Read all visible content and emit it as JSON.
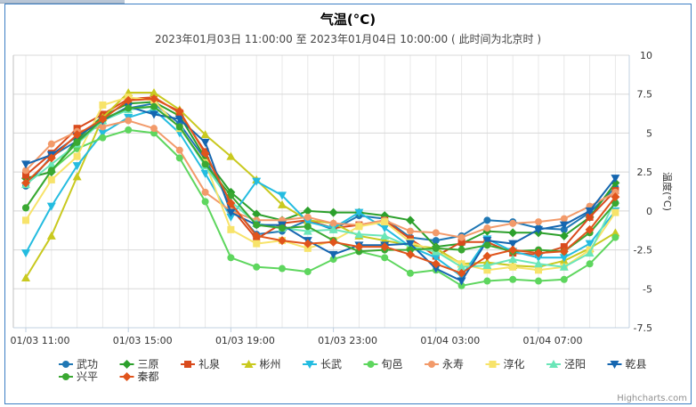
{
  "chart_data": {
    "type": "line",
    "title": "气温(°C)",
    "subtitle": "2023年01月03日 11:00:00 至 2023年01月04日 10:00:00 ( 此时间为北京时 )",
    "ylabel": "温度(°C)",
    "y_axis_side": "right",
    "ylim": [
      -7.5,
      10
    ],
    "yticks": [
      -7.5,
      -5,
      -2.5,
      0,
      2.5,
      5,
      7.5,
      10
    ],
    "grid": true,
    "legend_position": "bottom",
    "x": [
      "01/03 11:00",
      "01/03 12:00",
      "01/03 13:00",
      "01/03 14:00",
      "01/03 15:00",
      "01/03 16:00",
      "01/03 17:00",
      "01/03 18:00",
      "01/03 19:00",
      "01/03 20:00",
      "01/03 21:00",
      "01/03 22:00",
      "01/03 23:00",
      "01/04 00:00",
      "01/04 01:00",
      "01/04 02:00",
      "01/04 03:00",
      "01/04 04:00",
      "01/04 05:00",
      "01/04 06:00",
      "01/04 07:00",
      "01/04 08:00",
      "01/04 09:00",
      "01/04 10:00"
    ],
    "x_tick_labels": [
      "01/03 11:00",
      "01/03 15:00",
      "01/03 19:00",
      "01/03 23:00",
      "01/04 03:00",
      "01/04 07:00"
    ],
    "series": [
      {
        "name": "武功",
        "color": "#1f77b4",
        "marker": "circle",
        "values": [
          1.6,
          3.5,
          4.5,
          5.8,
          6.6,
          6.9,
          5.6,
          3.3,
          0.4,
          -1.5,
          -1.3,
          -0.6,
          -1.2,
          -0.3,
          -0.5,
          -1.7,
          -1.9,
          -1.6,
          -0.6,
          -0.7,
          -1.1,
          -1.2,
          -0.1,
          1.5
        ]
      },
      {
        "name": "三原",
        "color": "#2ca02c",
        "marker": "diamond",
        "values": [
          2.1,
          2.5,
          4.6,
          6.1,
          6.9,
          7.0,
          6.1,
          3.4,
          1.2,
          -0.2,
          -0.6,
          0.0,
          -0.1,
          -0.1,
          -0.3,
          -0.6,
          -2.3,
          -2.1,
          -1.3,
          -1.4,
          -1.4,
          -1.6,
          -0.4,
          1.8
        ]
      },
      {
        "name": "礼泉",
        "color": "#d94a1c",
        "marker": "square",
        "values": [
          2.3,
          3.7,
          5.3,
          6.2,
          7.2,
          7.3,
          6.3,
          3.8,
          0.2,
          -1.8,
          -0.8,
          -0.6,
          -1.1,
          -0.9,
          -0.6,
          -1.8,
          -2.9,
          -2.0,
          -2.0,
          -2.7,
          -2.8,
          -2.3,
          -0.4,
          1.3
        ]
      },
      {
        "name": "彬州",
        "color": "#c9c91f",
        "marker": "triangle",
        "values": [
          -4.3,
          -1.6,
          2.2,
          6.0,
          7.6,
          7.6,
          6.5,
          4.9,
          3.5,
          2.0,
          0.4,
          -0.6,
          -0.8,
          -1.6,
          -1.9,
          -2.2,
          -2.4,
          -3.4,
          -3.3,
          -3.5,
          -3.6,
          -3.2,
          -2.4,
          -1.4
        ]
      },
      {
        "name": "长武",
        "color": "#24bce0",
        "marker": "triangle-down",
        "values": [
          -2.7,
          0.3,
          2.9,
          5.0,
          6.0,
          6.5,
          5.0,
          2.4,
          -0.4,
          1.9,
          1.0,
          -0.7,
          -1.1,
          -0.1,
          -1.1,
          -2.3,
          -3.0,
          -4.2,
          -1.8,
          -2.6,
          -3.0,
          -3.0,
          -2.1,
          0.0
        ]
      },
      {
        "name": "旬邑",
        "color": "#5ed65e",
        "marker": "circle",
        "values": [
          0.2,
          2.6,
          4.0,
          4.7,
          5.2,
          5.0,
          3.4,
          0.6,
          -3.0,
          -3.6,
          -3.7,
          -3.9,
          -3.1,
          -2.6,
          -3.0,
          -4.0,
          -3.8,
          -4.8,
          -4.5,
          -4.4,
          -4.5,
          -4.4,
          -3.4,
          -1.7
        ]
      },
      {
        "name": "永寿",
        "color": "#f29a6a",
        "marker": "circle",
        "values": [
          2.6,
          4.3,
          5.1,
          5.4,
          5.8,
          5.3,
          3.9,
          1.2,
          0.0,
          -0.6,
          -0.6,
          -0.4,
          -0.8,
          -0.9,
          -0.6,
          -1.3,
          -1.4,
          -1.7,
          -1.1,
          -0.8,
          -0.7,
          -0.5,
          0.3,
          1.2
        ]
      },
      {
        "name": "淳化",
        "color": "#f7e36a",
        "marker": "square",
        "values": [
          -0.6,
          2.0,
          3.5,
          6.8,
          7.3,
          7.1,
          5.3,
          3.1,
          -1.2,
          -2.1,
          -1.9,
          -2.4,
          -1.9,
          -1.0,
          -0.7,
          -2.0,
          -2.6,
          -3.4,
          -3.8,
          -3.6,
          -3.8,
          -3.6,
          -2.5,
          -0.1
        ]
      },
      {
        "name": "泾阳",
        "color": "#6ae6b8",
        "marker": "triangle",
        "values": [
          1.7,
          3.0,
          4.3,
          5.8,
          6.5,
          6.7,
          5.4,
          2.9,
          0.6,
          -0.8,
          -1.1,
          -1.3,
          -1.2,
          -1.5,
          -1.6,
          -2.3,
          -2.6,
          -3.6,
          -3.5,
          -3.1,
          -3.4,
          -3.6,
          -2.7,
          0.7
        ]
      },
      {
        "name": "乾县",
        "color": "#1566b0",
        "marker": "triangle-down",
        "values": [
          3.0,
          3.6,
          4.8,
          5.8,
          6.7,
          6.2,
          5.9,
          4.4,
          -0.1,
          -0.9,
          -0.9,
          -1.9,
          -2.8,
          -2.2,
          -2.2,
          -2.1,
          -3.7,
          -4.5,
          -1.9,
          -2.1,
          -1.2,
          -0.9,
          0.0,
          2.1
        ]
      },
      {
        "name": "兴平",
        "color": "#3aa832",
        "marker": "circle",
        "values": [
          0.2,
          2.6,
          4.4,
          5.9,
          6.6,
          6.7,
          5.4,
          3.0,
          1.0,
          -0.9,
          -1.1,
          -1.0,
          -1.9,
          -2.6,
          -2.5,
          -2.5,
          -2.4,
          -2.5,
          -2.2,
          -2.6,
          -2.5,
          -2.6,
          -1.4,
          0.5
        ]
      },
      {
        "name": "秦都",
        "color": "#e0541c",
        "marker": "diamond",
        "values": [
          1.8,
          3.4,
          4.9,
          5.9,
          7.1,
          7.2,
          6.4,
          3.7,
          0.5,
          -1.6,
          -1.9,
          -2.1,
          -2.0,
          -2.3,
          -2.3,
          -2.8,
          -3.4,
          -4.0,
          -2.9,
          -2.5,
          -2.7,
          -2.6,
          -1.2,
          0.9
        ]
      }
    ]
  },
  "credits": "Highcharts.com"
}
